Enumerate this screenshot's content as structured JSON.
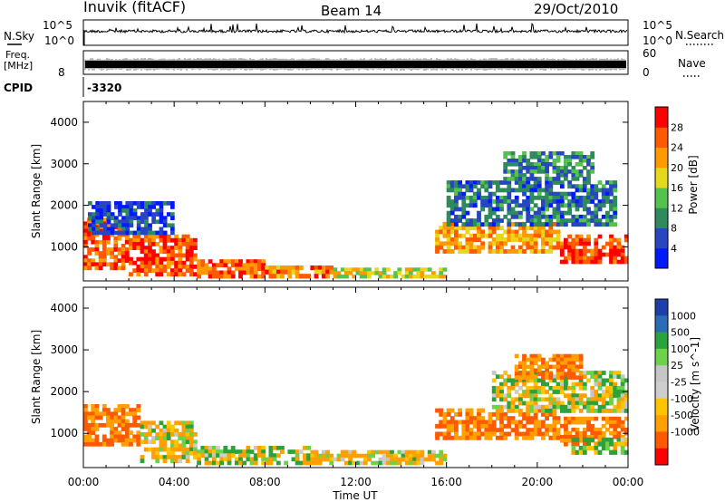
{
  "header": {
    "station": "Inuvik (fitACF)",
    "beam": "Beam 14",
    "date": "29/Oct/2010"
  },
  "strip_panels": {
    "nsky_label": "N.Sky",
    "nsky_ticks": [
      "10^5",
      "10^0"
    ],
    "nsearch_label": "N.Search",
    "nsearch_ticks": [
      "10^5",
      "10^0"
    ],
    "freq_label": "Freq.",
    "freq_unit": "[MHz]",
    "freq_ticks": [
      "8"
    ],
    "nave_label": "Nave",
    "nave_ticks": [
      "60",
      "0"
    ],
    "cpid_label": "CPID",
    "cpid_value": "-3320"
  },
  "colors": {
    "power_scale": [
      "#0019ff",
      "#2746c0",
      "#2f8a5c",
      "#55c24d",
      "#e6d81a",
      "#ff9b00",
      "#ff5a00",
      "#ff0000"
    ],
    "velocity_scale": [
      "#ff0000",
      "#ff5a00",
      "#ffa000",
      "#ffc400",
      "#cdcdcd",
      "#c6c6c6",
      "#6dd14a",
      "#2aa33a",
      "#2c6bb5",
      "#1f3fa8"
    ]
  },
  "chart_data": [
    {
      "type": "heatmap",
      "name": "power",
      "xlabel": "Time UT",
      "ylabel": "Slant Range [km]",
      "x_ticks": [
        "00:00",
        "04:00",
        "08:00",
        "12:00",
        "16:00",
        "20:00",
        "00:00"
      ],
      "x_range_hours": [
        0,
        24
      ],
      "y_ticks": [
        1000,
        2000,
        3000,
        4000
      ],
      "y_range_km": [
        180,
        4500
      ],
      "colorbar_label": "Power [dB]",
      "colorbar_ticks": [
        4,
        8,
        12,
        16,
        20,
        24,
        28
      ],
      "colorbar_range": [
        0,
        32
      ],
      "regions": [
        {
          "t0": 0.0,
          "t1": 2.0,
          "r0": 450,
          "r1": 1700,
          "level": 26
        },
        {
          "t0": 2.0,
          "t1": 5.0,
          "r0": 300,
          "r1": 1300,
          "level": 27
        },
        {
          "t0": 5.0,
          "t1": 8.0,
          "r0": 250,
          "r1": 700,
          "level": 25
        },
        {
          "t0": 8.0,
          "t1": 11.0,
          "r0": 250,
          "r1": 550,
          "level": 24
        },
        {
          "t0": 0.2,
          "t1": 4.0,
          "r0": 1300,
          "r1": 2100,
          "level": 6
        },
        {
          "t0": 11.0,
          "t1": 16.0,
          "r0": 250,
          "r1": 500,
          "level": 18
        },
        {
          "t0": 15.5,
          "t1": 21.0,
          "r0": 850,
          "r1": 1600,
          "level": 22
        },
        {
          "t0": 21.0,
          "t1": 24.0,
          "r0": 600,
          "r1": 1300,
          "level": 28
        },
        {
          "t0": 16.0,
          "t1": 23.5,
          "r0": 1500,
          "r1": 2600,
          "level": 8
        },
        {
          "t0": 18.5,
          "t1": 22.5,
          "r0": 2600,
          "r1": 3300,
          "level": 10
        }
      ]
    },
    {
      "type": "heatmap",
      "name": "velocity",
      "xlabel": "Time UT",
      "ylabel": "Slant Range [km]",
      "x_ticks": [
        "00:00",
        "04:00",
        "08:00",
        "12:00",
        "16:00",
        "20:00",
        "00:00"
      ],
      "x_range_hours": [
        0,
        24
      ],
      "y_ticks": [
        1000,
        2000,
        3000,
        4000
      ],
      "y_range_km": [
        180,
        4500
      ],
      "colorbar_label": "Velocity [m s^-1]",
      "colorbar_ticks": [
        "1000",
        "500",
        "100",
        "25",
        "-25",
        "-100",
        "-500",
        "-1000"
      ],
      "regions": [
        {
          "t0": 0.0,
          "t1": 2.5,
          "r0": 700,
          "r1": 1700,
          "level": -500
        },
        {
          "t0": 2.5,
          "t1": 5.0,
          "r0": 300,
          "r1": 1300,
          "level": -100
        },
        {
          "t0": 5.0,
          "t1": 10.0,
          "r0": 250,
          "r1": 700,
          "level": 0
        },
        {
          "t0": 10.0,
          "t1": 16.0,
          "r0": 250,
          "r1": 600,
          "level": -100
        },
        {
          "t0": 15.5,
          "t1": 21.0,
          "r0": 850,
          "r1": 1600,
          "level": -500
        },
        {
          "t0": 18.0,
          "t1": 24.0,
          "r0": 1500,
          "r1": 2500,
          "level": 0
        },
        {
          "t0": 19.0,
          "t1": 22.0,
          "r0": 2300,
          "r1": 2900,
          "level": -500
        },
        {
          "t0": 21.0,
          "t1": 24.0,
          "r0": 700,
          "r1": 1400,
          "level": -500
        },
        {
          "t0": 21.5,
          "t1": 24.0,
          "r0": 500,
          "r1": 900,
          "level": 100
        }
      ]
    }
  ]
}
